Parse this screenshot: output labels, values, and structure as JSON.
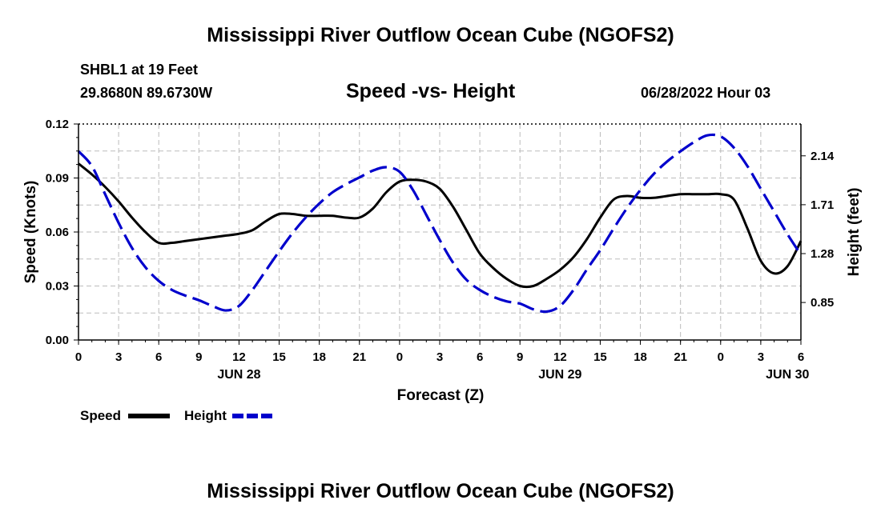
{
  "header": {
    "title": "Mississippi River Outflow Ocean Cube (NGOFS2)",
    "station": "SHBL1 at 19 Feet",
    "coords": "29.8680N  89.6730W",
    "subtitle": "Speed -vs- Height",
    "datetime": "06/28/2022 Hour 03"
  },
  "footer": {
    "title": "Mississippi River Outflow Ocean Cube (NGOFS2)"
  },
  "colors": {
    "speed": "#000000",
    "height": "#0000cc",
    "grid": "#bbbbbb"
  },
  "chart_data": {
    "type": "line",
    "title": "Speed -vs- Height",
    "xlabel": "Forecast (Z)",
    "ylabel": "Speed (Knots)",
    "ylabel_right": "Height (feet)",
    "x_range_hours": [
      0,
      54
    ],
    "x_ticks": [
      {
        "h": 0,
        "label": "0"
      },
      {
        "h": 3,
        "label": "3"
      },
      {
        "h": 6,
        "label": "6"
      },
      {
        "h": 9,
        "label": "9"
      },
      {
        "h": 12,
        "label": "12"
      },
      {
        "h": 15,
        "label": "15"
      },
      {
        "h": 18,
        "label": "18"
      },
      {
        "h": 21,
        "label": "21"
      },
      {
        "h": 24,
        "label": "0"
      },
      {
        "h": 27,
        "label": "3"
      },
      {
        "h": 30,
        "label": "6"
      },
      {
        "h": 33,
        "label": "9"
      },
      {
        "h": 36,
        "label": "12"
      },
      {
        "h": 39,
        "label": "15"
      },
      {
        "h": 42,
        "label": "18"
      },
      {
        "h": 45,
        "label": "21"
      },
      {
        "h": 48,
        "label": "0"
      },
      {
        "h": 51,
        "label": "3"
      },
      {
        "h": 54,
        "label": "6"
      }
    ],
    "day_labels": [
      {
        "h": 12,
        "label": "JUN 28"
      },
      {
        "h": 36,
        "label": "JUN 29"
      },
      {
        "h": 53,
        "label": "JUN 30"
      }
    ],
    "ylim_left": [
      0,
      0.12
    ],
    "y_ticks_left": [
      "0.00",
      "0.03",
      "0.06",
      "0.09",
      "0.12"
    ],
    "ylim_right": [
      0.52,
      2.42
    ],
    "y_ticks_right": [
      {
        "v": 0.85,
        "label": "0.85"
      },
      {
        "v": 1.28,
        "label": "1.28"
      },
      {
        "v": 1.71,
        "label": "1.71"
      },
      {
        "v": 2.14,
        "label": "2.14"
      }
    ],
    "series": [
      {
        "name": "Speed",
        "axis": "left",
        "x": [
          0,
          1,
          2,
          3,
          4,
          5,
          6,
          7,
          8,
          9,
          10,
          11,
          12,
          13,
          14,
          15,
          16,
          17,
          18,
          19,
          20,
          21,
          22,
          23,
          24,
          25,
          26,
          27,
          28,
          29,
          30,
          31,
          32,
          33,
          34,
          35,
          36,
          37,
          38,
          39,
          40,
          41,
          42,
          43,
          44,
          45,
          46,
          47,
          48,
          49,
          50,
          51,
          52,
          53,
          54
        ],
        "values": [
          0.098,
          0.092,
          0.085,
          0.077,
          0.068,
          0.06,
          0.054,
          0.054,
          0.055,
          0.056,
          0.057,
          0.058,
          0.059,
          0.061,
          0.066,
          0.07,
          0.07,
          0.069,
          0.069,
          0.069,
          0.068,
          0.068,
          0.073,
          0.082,
          0.088,
          0.089,
          0.088,
          0.084,
          0.074,
          0.061,
          0.048,
          0.04,
          0.034,
          0.03,
          0.03,
          0.034,
          0.039,
          0.046,
          0.056,
          0.068,
          0.078,
          0.08,
          0.079,
          0.079,
          0.08,
          0.081,
          0.081,
          0.081,
          0.081,
          0.078,
          0.062,
          0.044,
          0.037,
          0.041,
          0.055
        ]
      },
      {
        "name": "Height",
        "axis": "right",
        "x": [
          0,
          1,
          2,
          3,
          4,
          5,
          6,
          7,
          8,
          9,
          10,
          11,
          12,
          13,
          14,
          15,
          16,
          17,
          18,
          19,
          20,
          21,
          22,
          23,
          24,
          25,
          26,
          27,
          28,
          29,
          30,
          31,
          32,
          33,
          34,
          35,
          36,
          37,
          38,
          39,
          40,
          41,
          42,
          43,
          44,
          45,
          46,
          47,
          48,
          49,
          50,
          51,
          52,
          53,
          54
        ],
        "values": [
          2.18,
          2.05,
          1.8,
          1.55,
          1.33,
          1.16,
          1.04,
          0.96,
          0.91,
          0.87,
          0.82,
          0.78,
          0.82,
          0.96,
          1.13,
          1.3,
          1.46,
          1.6,
          1.72,
          1.82,
          1.89,
          1.95,
          2.01,
          2.04,
          2.0,
          1.84,
          1.62,
          1.4,
          1.2,
          1.05,
          0.96,
          0.9,
          0.86,
          0.84,
          0.79,
          0.77,
          0.82,
          0.96,
          1.14,
          1.31,
          1.5,
          1.68,
          1.84,
          1.98,
          2.09,
          2.18,
          2.26,
          2.32,
          2.31,
          2.21,
          2.05,
          1.85,
          1.65,
          1.45,
          1.27
        ]
      }
    ],
    "legend": [
      {
        "name": "Speed",
        "style": "solid"
      },
      {
        "name": "Height",
        "style": "dashed"
      }
    ]
  }
}
